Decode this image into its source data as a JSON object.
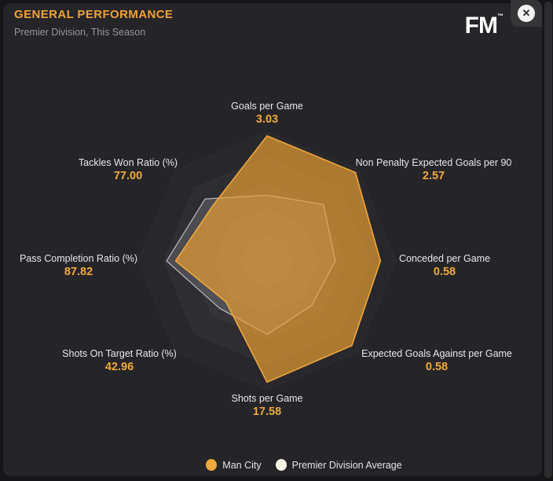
{
  "header": {
    "title": "GENERAL PERFORMANCE",
    "subtitle": "Premier Division, This Season",
    "logo": "FM",
    "logo_tm": "™",
    "close_glyph": "✕"
  },
  "chart_data": {
    "type": "radar",
    "title": "GENERAL PERFORMANCE",
    "subtitle": "Premier Division, This Season",
    "legend_position": "bottom",
    "axes": [
      {
        "label": "Goals per Game",
        "value": "3.03"
      },
      {
        "label": "Non Penalty Expected Goals per 90",
        "value": "2.57"
      },
      {
        "label": "Conceded per Game",
        "value": "0.58"
      },
      {
        "label": "Expected Goals Against per Game",
        "value": "0.58"
      },
      {
        "label": "Shots per Game",
        "value": "17.58"
      },
      {
        "label": "Shots On Target Ratio (%)",
        "value": "42.96"
      },
      {
        "label": "Pass Completion Ratio (%)",
        "value": "87.82"
      },
      {
        "label": "Tackles Won Ratio (%)",
        "value": "77.00"
      }
    ],
    "series": [
      {
        "name": "Man City",
        "stroke": "#f2a63c",
        "fill": "rgba(235,160,50,0.68)",
        "stroke_width": 1.6,
        "fractions": [
          0.97,
          0.97,
          0.88,
          0.93,
          0.94,
          0.45,
          0.71,
          0.6
        ]
      },
      {
        "name": "Premier Division Average",
        "stroke": "rgba(238,238,242,0.7)",
        "fill": "rgba(228,226,235,0.17)",
        "stroke_width": 1.2,
        "fractions": [
          0.51,
          0.62,
          0.53,
          0.49,
          0.57,
          0.52,
          0.78,
          0.68
        ]
      }
    ],
    "grid": {
      "levels": [
        1.0,
        0.8,
        0.6,
        0.4,
        0.2
      ],
      "ring_colors": [
        "#28282c",
        "#2d2d32",
        "#333339",
        "#393940",
        "#3f3f47"
      ],
      "ring_stroke": "rgba(255,255,255,0.04)"
    }
  },
  "legend": {
    "items": [
      {
        "label": "Man City",
        "color": "#f0a93c"
      },
      {
        "label": "Premier Division Average",
        "color": "#f7f3e7"
      }
    ]
  }
}
